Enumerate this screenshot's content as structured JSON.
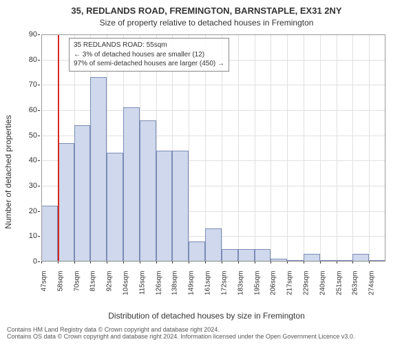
{
  "title_main": "35, REDLANDS ROAD, FREMINGTON, BARNSTAPLE, EX31 2NY",
  "title_sub": "Size of property relative to detached houses in Fremington",
  "y_label": "Number of detached properties",
  "x_label": "Distribution of detached houses by size in Fremington",
  "chart": {
    "type": "histogram",
    "x_tick_labels": [
      "47sqm",
      "58sqm",
      "70sqm",
      "81sqm",
      "92sqm",
      "104sqm",
      "115sqm",
      "126sqm",
      "138sqm",
      "149sqm",
      "161sqm",
      "172sqm",
      "183sqm",
      "195sqm",
      "206sqm",
      "217sqm",
      "229sqm",
      "240sqm",
      "251sqm",
      "263sqm",
      "274sqm"
    ],
    "values": [
      22,
      47,
      54,
      73,
      43,
      61,
      56,
      44,
      44,
      8,
      13,
      5,
      5,
      5,
      1,
      0,
      3,
      0,
      0,
      3,
      0
    ],
    "ylim": [
      0,
      90
    ],
    "ytick_step": 10,
    "bar_fill": "#cfd8ec",
    "bar_border": "#7b8bb5",
    "grid_color": "#e0e0e0",
    "background": "#ffffff",
    "ref_line_color": "#d9261c",
    "ref_line_bin_index": 0
  },
  "info_box": {
    "line1": "35 REDLANDS ROAD: 55sqm",
    "line2": "← 3% of detached houses are smaller (12)",
    "line3": "97% of semi-detached houses are larger (450) →"
  },
  "footer_line1": "Contains HM Land Registry data © Crown copyright and database right 2024.",
  "footer_line2": "Contains OS data © Crown copyright and database right 2024. Information licensed under the Open Government Licence v3.0."
}
